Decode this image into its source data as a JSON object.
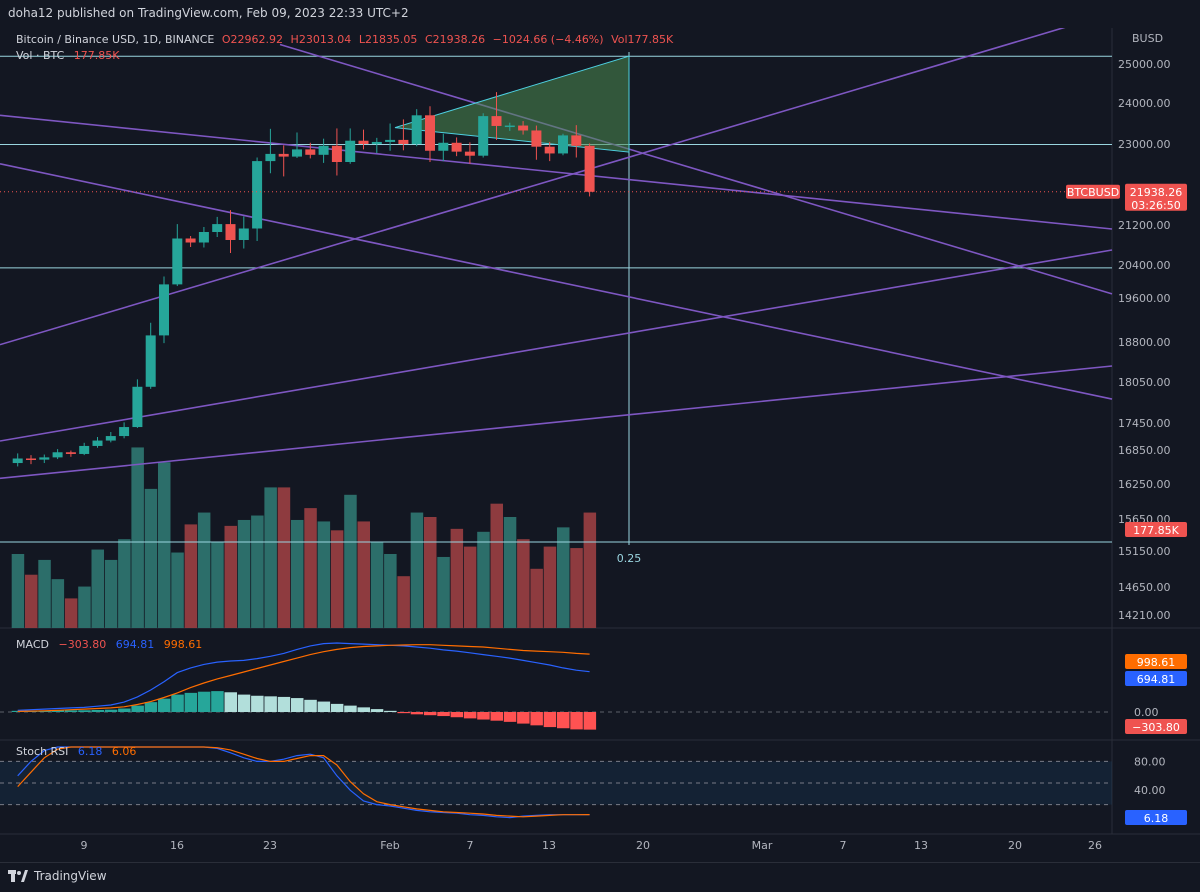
{
  "header": {
    "publish_text": "doha12 published on TradingView.com, Feb 09, 2023 22:33 UTC+2"
  },
  "footer": {
    "brand": "TradingView"
  },
  "colors": {
    "up": "#26a69a",
    "down": "#ef5350",
    "trend": "#7e57c2",
    "hline": "#9ad5e0",
    "macd": "#2962ff",
    "signal": "#ff6d00"
  },
  "chart_data": {
    "type": "candlestick",
    "title": "Bitcoin / Binance USD, 1D, BINANCE",
    "ohlc_label": {
      "o": "O22962.92",
      "h": "H23013.04",
      "l": "L21835.05",
      "c": "C21938.26",
      "change": "−1024.66 (−4.46%)",
      "vol": "Vol177.85K"
    },
    "vol_label": "Vol · BTC",
    "vol_value": "177.85K",
    "currency": "BUSD",
    "symbol_badge": "BTCBUSD",
    "last_price": "21938.26",
    "countdown": "03:26:50",
    "vol_badge": "177.85K",
    "fib_label": "0.25",
    "y_ticks": [
      "25000.00",
      "24000.00",
      "23000.00",
      "21200.00",
      "20400.00",
      "19600.00",
      "18800.00",
      "18050.00",
      "17450.00",
      "16850.00",
      "16250.00",
      "15650.00",
      "15150.00",
      "14650.00",
      "14210.00"
    ],
    "x_ticks": [
      "9",
      "16",
      "23",
      "Feb",
      "7",
      "13",
      "20",
      "Mar",
      "7",
      "13",
      "20",
      "26"
    ],
    "candles": [
      {
        "o": 16620,
        "h": 16790,
        "l": 16560,
        "c": 16700,
        "v": 0.5
      },
      {
        "o": 16700,
        "h": 16760,
        "l": 16600,
        "c": 16680,
        "v": 0.36
      },
      {
        "o": 16680,
        "h": 16770,
        "l": 16620,
        "c": 16720,
        "v": 0.46
      },
      {
        "o": 16720,
        "h": 16870,
        "l": 16690,
        "c": 16810,
        "v": 0.33
      },
      {
        "o": 16810,
        "h": 16840,
        "l": 16730,
        "c": 16780,
        "v": 0.2
      },
      {
        "o": 16780,
        "h": 17010,
        "l": 16760,
        "c": 16940,
        "v": 0.28
      },
      {
        "o": 16940,
        "h": 17140,
        "l": 16900,
        "c": 17060,
        "v": 0.53
      },
      {
        "o": 17060,
        "h": 17250,
        "l": 17020,
        "c": 17160,
        "v": 0.46
      },
      {
        "o": 17160,
        "h": 17460,
        "l": 17110,
        "c": 17360,
        "v": 0.6
      },
      {
        "o": 17360,
        "h": 18100,
        "l": 17340,
        "c": 17980,
        "v": 1.22
      },
      {
        "o": 17980,
        "h": 19150,
        "l": 17950,
        "c": 18920,
        "v": 0.94
      },
      {
        "o": 18920,
        "h": 20120,
        "l": 18780,
        "c": 19930,
        "v": 1.12
      },
      {
        "o": 19930,
        "h": 21220,
        "l": 19890,
        "c": 20930,
        "v": 0.51
      },
      {
        "o": 20930,
        "h": 20980,
        "l": 20760,
        "c": 20850,
        "v": 0.7
      },
      {
        "o": 20850,
        "h": 21160,
        "l": 20750,
        "c": 21060,
        "v": 0.78
      },
      {
        "o": 21060,
        "h": 21380,
        "l": 20960,
        "c": 21220,
        "v": 0.58
      },
      {
        "o": 21220,
        "h": 21530,
        "l": 20640,
        "c": 20900,
        "v": 0.69
      },
      {
        "o": 20900,
        "h": 21390,
        "l": 20730,
        "c": 21130,
        "v": 0.73
      },
      {
        "o": 21130,
        "h": 22700,
        "l": 20880,
        "c": 22620,
        "v": 0.76
      },
      {
        "o": 22620,
        "h": 23370,
        "l": 22350,
        "c": 22780,
        "v": 0.95
      },
      {
        "o": 22780,
        "h": 22970,
        "l": 22280,
        "c": 22720,
        "v": 0.95
      },
      {
        "o": 22720,
        "h": 23280,
        "l": 22690,
        "c": 22880,
        "v": 0.73
      },
      {
        "o": 22880,
        "h": 23030,
        "l": 22680,
        "c": 22760,
        "v": 0.81
      },
      {
        "o": 22760,
        "h": 23130,
        "l": 22580,
        "c": 22960,
        "v": 0.72
      },
      {
        "o": 22960,
        "h": 23380,
        "l": 22300,
        "c": 22600,
        "v": 0.66
      },
      {
        "o": 22600,
        "h": 23380,
        "l": 22560,
        "c": 23080,
        "v": 0.9
      },
      {
        "o": 23080,
        "h": 23350,
        "l": 22880,
        "c": 23000,
        "v": 0.72
      },
      {
        "o": 23000,
        "h": 23150,
        "l": 22800,
        "c": 23050,
        "v": 0.58
      },
      {
        "o": 23050,
        "h": 23500,
        "l": 22850,
        "c": 23100,
        "v": 0.5
      },
      {
        "o": 23100,
        "h": 23600,
        "l": 22860,
        "c": 23000,
        "v": 0.35
      },
      {
        "o": 23000,
        "h": 23850,
        "l": 22950,
        "c": 23700,
        "v": 0.78
      },
      {
        "o": 23700,
        "h": 23920,
        "l": 22600,
        "c": 22850,
        "v": 0.75
      },
      {
        "o": 22850,
        "h": 23250,
        "l": 22620,
        "c": 23030,
        "v": 0.48
      },
      {
        "o": 23030,
        "h": 23160,
        "l": 22730,
        "c": 22830,
        "v": 0.67
      },
      {
        "o": 22830,
        "h": 23040,
        "l": 22560,
        "c": 22740,
        "v": 0.55
      },
      {
        "o": 22740,
        "h": 23750,
        "l": 22700,
        "c": 23680,
        "v": 0.65
      },
      {
        "o": 23680,
        "h": 24280,
        "l": 23100,
        "c": 23440,
        "v": 0.84
      },
      {
        "o": 23440,
        "h": 23520,
        "l": 23320,
        "c": 23450,
        "v": 0.75
      },
      {
        "o": 23450,
        "h": 23560,
        "l": 23230,
        "c": 23330,
        "v": 0.6
      },
      {
        "o": 23330,
        "h": 23450,
        "l": 22650,
        "c": 22940,
        "v": 0.4
      },
      {
        "o": 22940,
        "h": 23050,
        "l": 22620,
        "c": 22790,
        "v": 0.55
      },
      {
        "o": 22790,
        "h": 23250,
        "l": 22750,
        "c": 23210,
        "v": 0.68
      },
      {
        "o": 23210,
        "h": 23460,
        "l": 22700,
        "c": 22960,
        "v": 0.54
      },
      {
        "o": 22960,
        "h": 23013,
        "l": 21835,
        "c": 21938,
        "v": 0.78
      }
    ],
    "horizontal_lines": [
      25200,
      22990,
      20330,
      15290
    ],
    "macd": {
      "label": "MACD",
      "hist_value": "−303.80",
      "macd_value": "694.81",
      "signal_value": "998.61",
      "axis_labels": [
        "0.00"
      ],
      "badge_signal": "998.61",
      "badge_macd": "694.81",
      "badge_hist": "−303.80",
      "hist": [
        20,
        22,
        24,
        26,
        28,
        30,
        35,
        40,
        60,
        110,
        170,
        230,
        300,
        330,
        350,
        360,
        340,
        300,
        280,
        270,
        260,
        240,
        210,
        180,
        140,
        110,
        80,
        50,
        20,
        -20,
        -40,
        -55,
        -70,
        -90,
        -110,
        -130,
        -150,
        -170,
        -200,
        -230,
        -260,
        -280,
        -300,
        -304
      ],
      "macd_line": [
        30,
        40,
        50,
        60,
        70,
        80,
        100,
        120,
        170,
        260,
        380,
        520,
        680,
        760,
        820,
        860,
        880,
        890,
        920,
        960,
        1010,
        1080,
        1140,
        1180,
        1190,
        1180,
        1170,
        1160,
        1150,
        1140,
        1120,
        1100,
        1070,
        1050,
        1020,
        990,
        960,
        930,
        890,
        850,
        810,
        760,
        720,
        695
      ],
      "signal_line": [
        10,
        15,
        20,
        30,
        40,
        50,
        60,
        70,
        90,
        130,
        180,
        250,
        330,
        420,
        500,
        570,
        630,
        690,
        750,
        810,
        870,
        930,
        990,
        1040,
        1080,
        1110,
        1130,
        1140,
        1150,
        1155,
        1160,
        1160,
        1150,
        1140,
        1130,
        1120,
        1100,
        1080,
        1060,
        1050,
        1040,
        1030,
        1010,
        999
      ]
    },
    "stoch": {
      "label": "Stoch RSI",
      "k_value": "6.18",
      "d_value": "6.06",
      "axis_labels": [
        "80.00",
        "40.00"
      ],
      "badge_k": "6.18",
      "k": [
        60,
        80,
        95,
        100,
        100,
        100,
        100,
        100,
        100,
        100,
        100,
        100,
        100,
        100,
        100,
        98,
        92,
        85,
        80,
        80,
        83,
        88,
        90,
        85,
        60,
        40,
        25,
        20,
        18,
        15,
        12,
        10,
        9,
        8,
        6,
        5,
        3,
        2,
        4,
        5,
        6,
        6,
        6,
        6.18
      ],
      "d": [
        45,
        65,
        85,
        97,
        100,
        100,
        100,
        100,
        100,
        100,
        100,
        100,
        100,
        100,
        100,
        99,
        96,
        90,
        84,
        80,
        80,
        84,
        88,
        88,
        75,
        52,
        35,
        24,
        20,
        17,
        14,
        12,
        10,
        9,
        8,
        7,
        5,
        4,
        3,
        4,
        5,
        6,
        6,
        6.06
      ]
    }
  }
}
